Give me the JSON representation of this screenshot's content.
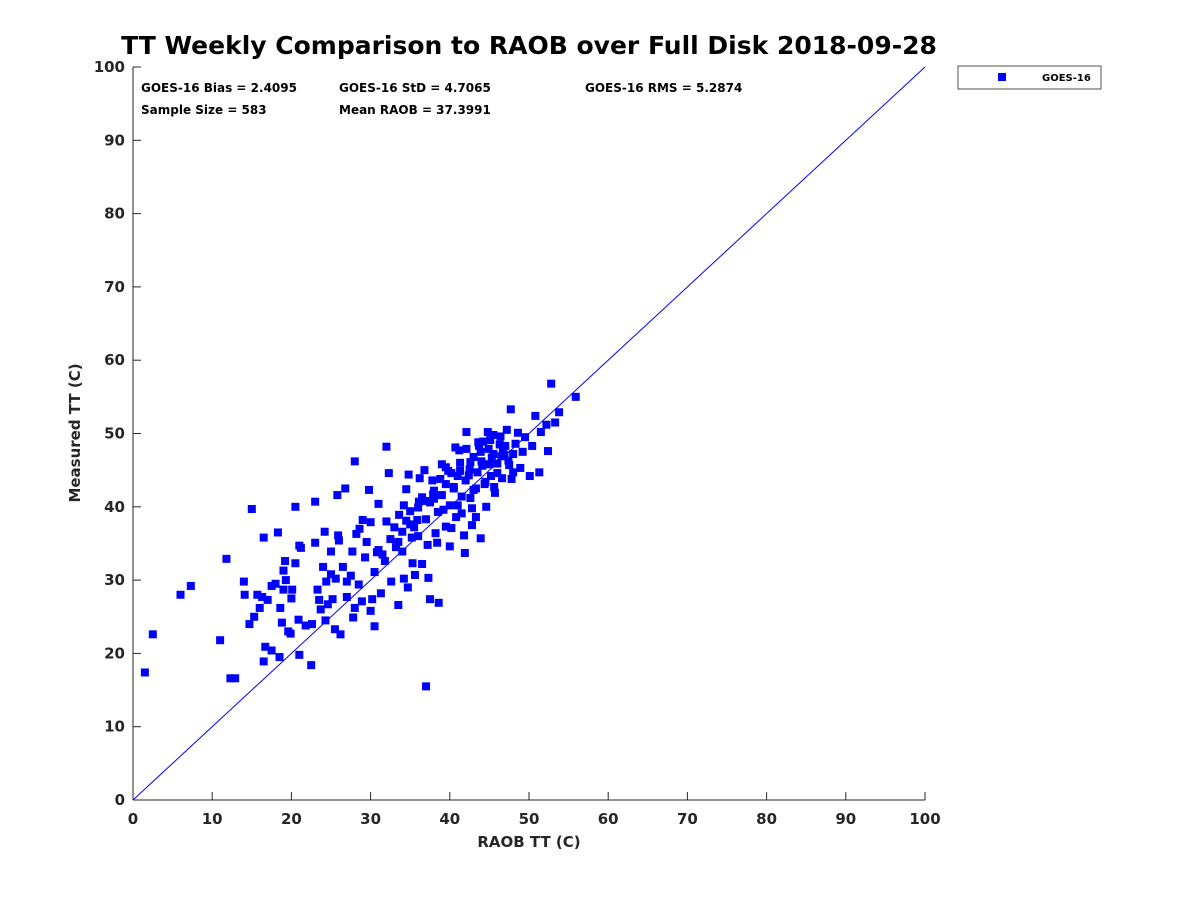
{
  "chart_data": {
    "type": "scatter",
    "title": "TT Weekly Comparison to RAOB over Full Disk 2018-09-28",
    "xlabel": "RAOB TT (C)",
    "ylabel": "Measured TT (C)",
    "xlim": [
      0,
      100
    ],
    "ylim": [
      0,
      100
    ],
    "xticks": [
      "0",
      "10",
      "20",
      "30",
      "40",
      "50",
      "60",
      "70",
      "80",
      "90",
      "100"
    ],
    "yticks": [
      "0",
      "10",
      "20",
      "30",
      "40",
      "50",
      "60",
      "70",
      "80",
      "90",
      "100"
    ],
    "grid": false,
    "legend_position": "outside-top-right",
    "reference_line": {
      "from": [
        0,
        0
      ],
      "to": [
        100,
        100
      ],
      "color": "#0000ff"
    },
    "stats": [
      "GOES-16 Bias = 2.4095",
      "GOES-16 StD = 4.7065",
      "GOES-16 RMS = 5.2874",
      "Sample Size = 583",
      "Mean RAOB = 37.3991"
    ],
    "series": [
      {
        "name": "GOES-16",
        "color": "#0000ff",
        "marker": "square",
        "points": [
          [
            1.5,
            17.4
          ],
          [
            2.5,
            22.6
          ],
          [
            6,
            28
          ],
          [
            7.3,
            29.2
          ],
          [
            11,
            21.8
          ],
          [
            11.8,
            32.9
          ],
          [
            12.3,
            16.6
          ],
          [
            12.9,
            16.6
          ],
          [
            14,
            29.8
          ],
          [
            14.1,
            28
          ],
          [
            14.7,
            24
          ],
          [
            15,
            39.7
          ],
          [
            15.3,
            25
          ],
          [
            15.7,
            28
          ],
          [
            16,
            26.2
          ],
          [
            16.3,
            27.7
          ],
          [
            16.5,
            35.8
          ],
          [
            16.5,
            18.9
          ],
          [
            16.7,
            20.9
          ],
          [
            17,
            27.3
          ],
          [
            17.5,
            29.2
          ],
          [
            17.5,
            20.4
          ],
          [
            18,
            29.5
          ],
          [
            18.3,
            36.5
          ],
          [
            18.5,
            19.5
          ],
          [
            18.6,
            26.2
          ],
          [
            18.8,
            24.2
          ],
          [
            19,
            28.7
          ],
          [
            19,
            31.3
          ],
          [
            19.2,
            32.6
          ],
          [
            19.3,
            30
          ],
          [
            19.6,
            23
          ],
          [
            19.9,
            22.7
          ],
          [
            20,
            27.5
          ],
          [
            20.1,
            28.7
          ],
          [
            20.5,
            40
          ],
          [
            20.5,
            32.3
          ],
          [
            20.9,
            24.6
          ],
          [
            21,
            19.8
          ],
          [
            21,
            34.7
          ],
          [
            21.2,
            34.4
          ],
          [
            21.8,
            23.8
          ],
          [
            22.5,
            18.4
          ],
          [
            22.6,
            24
          ],
          [
            23,
            35.1
          ],
          [
            23,
            40.7
          ],
          [
            23.3,
            28.7
          ],
          [
            23.5,
            27.3
          ],
          [
            23.7,
            26
          ],
          [
            24,
            31.8
          ],
          [
            24.2,
            36.6
          ],
          [
            24.3,
            24.5
          ],
          [
            24.4,
            29.8
          ],
          [
            24.6,
            26.7
          ],
          [
            25,
            33.9
          ],
          [
            25,
            30.8
          ],
          [
            25.2,
            27.4
          ],
          [
            25.5,
            23.3
          ],
          [
            25.6,
            30.2
          ],
          [
            25.8,
            41.6
          ],
          [
            25.9,
            36.1
          ],
          [
            26,
            35.4
          ],
          [
            26.2,
            22.6
          ],
          [
            26.5,
            31.8
          ],
          [
            26.8,
            42.5
          ],
          [
            27,
            27.7
          ],
          [
            27,
            29.8
          ],
          [
            27.5,
            30.6
          ],
          [
            27.7,
            33.9
          ],
          [
            27.8,
            24.9
          ],
          [
            28,
            46.2
          ],
          [
            28,
            26.2
          ],
          [
            28.2,
            36.3
          ],
          [
            28.5,
            29.4
          ],
          [
            28.6,
            37
          ],
          [
            28.9,
            27.1
          ],
          [
            29,
            38.2
          ],
          [
            29.3,
            33.1
          ],
          [
            29.5,
            35.2
          ],
          [
            29.8,
            42.3
          ],
          [
            30,
            37.9
          ],
          [
            30,
            25.8
          ],
          [
            30.2,
            27.4
          ],
          [
            30.5,
            23.7
          ],
          [
            30.5,
            31.1
          ],
          [
            30.8,
            33.8
          ],
          [
            31,
            34.1
          ],
          [
            31,
            40.4
          ],
          [
            31.3,
            28.2
          ],
          [
            31.5,
            33.5
          ],
          [
            31.8,
            32.6
          ],
          [
            32,
            48.2
          ],
          [
            32,
            38
          ],
          [
            32.3,
            44.6
          ],
          [
            32.5,
            35.6
          ],
          [
            32.6,
            29.8
          ],
          [
            33,
            37.2
          ],
          [
            33.2,
            34.5
          ],
          [
            33.5,
            26.6
          ],
          [
            33.6,
            38.9
          ],
          [
            34,
            33.9
          ],
          [
            34.2,
            30.2
          ],
          [
            34.5,
            42.4
          ],
          [
            34.7,
            29
          ],
          [
            34.8,
            44.4
          ],
          [
            35,
            37.6
          ],
          [
            35.3,
            32.3
          ],
          [
            35.6,
            30.7
          ],
          [
            36,
            36
          ],
          [
            36.1,
            40.7
          ],
          [
            36.5,
            32.2
          ],
          [
            36.8,
            45
          ],
          [
            37,
            15.5
          ],
          [
            37.3,
            30.3
          ],
          [
            37.5,
            27.4
          ],
          [
            37.8,
            43.6
          ],
          [
            38,
            41.1
          ],
          [
            38.4,
            35.1
          ],
          [
            38.6,
            26.9
          ],
          [
            39,
            45.8
          ],
          [
            39.2,
            39.6
          ],
          [
            39.5,
            37.3
          ],
          [
            40,
            34.6
          ],
          [
            40.2,
            44.6
          ],
          [
            40.5,
            42.5
          ],
          [
            40.8,
            38.6
          ],
          [
            41,
            40.2
          ],
          [
            41.3,
            46
          ],
          [
            41.5,
            39.1
          ],
          [
            41.9,
            33.7
          ],
          [
            42.1,
            50.2
          ],
          [
            42.4,
            44.3
          ],
          [
            42.6,
            41.2
          ],
          [
            42.8,
            37.5
          ],
          [
            43,
            46.8
          ],
          [
            43.3,
            42.5
          ],
          [
            43.6,
            48.8
          ],
          [
            43.9,
            35.7
          ],
          [
            44.1,
            45.6
          ],
          [
            44.4,
            43.1
          ],
          [
            44.6,
            40
          ],
          [
            44.9,
            47.9
          ],
          [
            45.2,
            44.2
          ],
          [
            45.5,
            49.8
          ],
          [
            45.7,
            41.9
          ],
          [
            46,
            45.9
          ],
          [
            46.3,
            48.5
          ],
          [
            46.6,
            43.9
          ],
          [
            46.9,
            47.1
          ],
          [
            47.2,
            50.5
          ],
          [
            47.4,
            46.3
          ],
          [
            47.7,
            53.3
          ],
          [
            48,
            44.7
          ],
          [
            48.3,
            48.6
          ],
          [
            48.6,
            50.1
          ],
          [
            48.9,
            45.3
          ],
          [
            49.2,
            47.5
          ],
          [
            49.5,
            49.5
          ],
          [
            50.1,
            44.2
          ],
          [
            50.4,
            48.3
          ],
          [
            50.8,
            52.4
          ],
          [
            51.3,
            44.7
          ],
          [
            51.5,
            50.2
          ],
          [
            52.2,
            51.2
          ],
          [
            52.4,
            47.6
          ],
          [
            52.8,
            56.8
          ],
          [
            53.3,
            51.5
          ],
          [
            53.8,
            52.9
          ],
          [
            55.9,
            55
          ],
          [
            33.5,
            35.2
          ],
          [
            34,
            36.6
          ],
          [
            34.5,
            38.1
          ],
          [
            35,
            39.4
          ],
          [
            35.5,
            37.2
          ],
          [
            36,
            39.9
          ],
          [
            36.5,
            41.3
          ],
          [
            37,
            38.3
          ],
          [
            37.5,
            40.6
          ],
          [
            38,
            42.2
          ],
          [
            38.5,
            39.3
          ],
          [
            39,
            41.6
          ],
          [
            39.5,
            43.1
          ],
          [
            40,
            40.2
          ],
          [
            40.5,
            42.7
          ],
          [
            41,
            44.2
          ],
          [
            41.5,
            41.4
          ],
          [
            42,
            43.6
          ],
          [
            42.5,
            45.1
          ],
          [
            43,
            42.3
          ],
          [
            43.5,
            44.7
          ],
          [
            44,
            46.2
          ],
          [
            44.5,
            43.4
          ],
          [
            45,
            45.8
          ],
          [
            45.5,
            47.2
          ],
          [
            46,
            44.6
          ],
          [
            46.5,
            46.9
          ],
          [
            47,
            48.3
          ],
          [
            47.5,
            45.7
          ],
          [
            48,
            47.2
          ],
          [
            39.5,
            45.4
          ],
          [
            40.2,
            37.1
          ],
          [
            41.2,
            47.7
          ],
          [
            42.8,
            39.8
          ],
          [
            44.2,
            48.9
          ],
          [
            45.6,
            42.7
          ],
          [
            46.4,
            49.6
          ],
          [
            47.8,
            43.8
          ],
          [
            38.2,
            36.4
          ],
          [
            36.2,
            43.9
          ],
          [
            35.2,
            35.8
          ],
          [
            37.2,
            34.8
          ],
          [
            43.3,
            38.6
          ],
          [
            41.8,
            36.1
          ],
          [
            34.2,
            40.2
          ],
          [
            45.1,
            49.1
          ],
          [
            40.7,
            48.1
          ],
          [
            42.1,
            47.9
          ],
          [
            43.7,
            48.3
          ],
          [
            44.8,
            50.2
          ],
          [
            41.3,
            44.9
          ],
          [
            42.6,
            46.1
          ],
          [
            43.9,
            47.5
          ],
          [
            45.3,
            46.7
          ],
          [
            46.7,
            47.8
          ],
          [
            38.8,
            43.8
          ],
          [
            39.8,
            44.9
          ],
          [
            36.9,
            40.8
          ],
          [
            37.9,
            41.7
          ],
          [
            35.9,
            38.2
          ]
        ]
      }
    ]
  }
}
